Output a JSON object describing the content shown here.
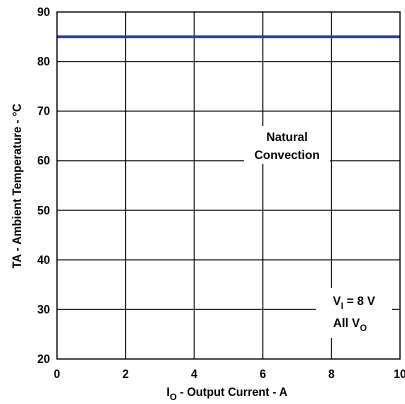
{
  "chart_data": {
    "type": "line",
    "xlabel": {
      "main": "I",
      "sub": "O",
      "rest": " - Output Current - A"
    },
    "ylabel": "TA - Ambient Temperature - °C",
    "xlim": [
      0,
      10
    ],
    "ylim": [
      20,
      90
    ],
    "x_ticks": [
      "0",
      "2",
      "4",
      "6",
      "8",
      "10"
    ],
    "y_ticks": [
      "20",
      "30",
      "40",
      "50",
      "60",
      "70",
      "80",
      "90"
    ],
    "grid": true,
    "series": [
      {
        "x": [
          0,
          10
        ],
        "y": [
          85,
          85
        ],
        "color": "#2e3a8c"
      }
    ],
    "annotations": {
      "convection_line1": "Natural",
      "convection_line2": "Convection",
      "vi_main": "V",
      "vi_sub": "I",
      "vi_rest": " = 8 V",
      "allvo_main": "All V",
      "allvo_sub": "O"
    }
  }
}
